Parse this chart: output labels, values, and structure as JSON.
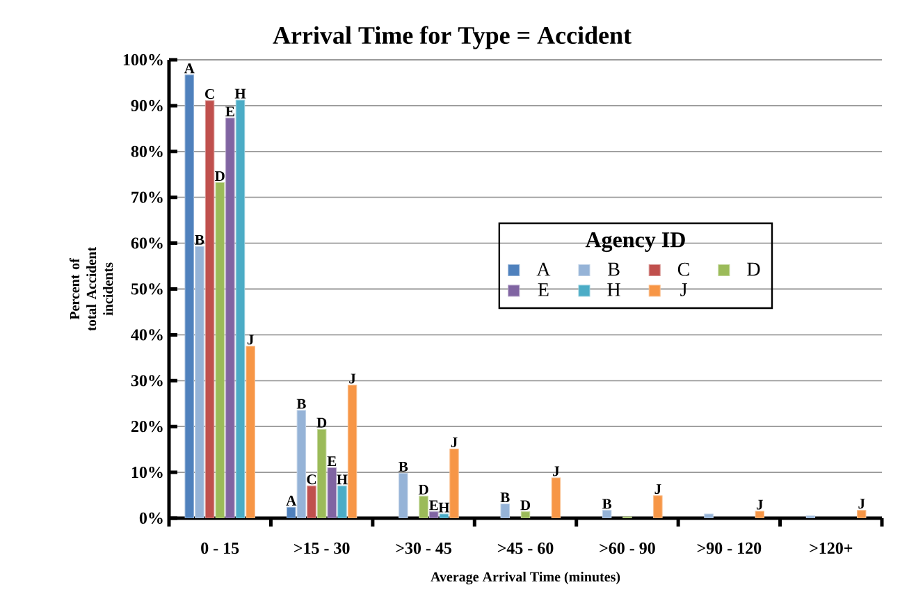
{
  "chart_data": {
    "type": "bar",
    "title": "Arrival Time for Type = Accident",
    "xlabel": "Average Arrival Time (minutes)",
    "ylabel": "Percent of total Accident incidents",
    "legend_title": "Agency ID",
    "categories": [
      "0 - 15",
      ">15 - 30",
      ">30 - 45",
      ">45 - 60",
      ">60 - 90",
      ">90 - 120",
      ">120+"
    ],
    "series": [
      {
        "name": "A",
        "color": "#4f81bd",
        "values": [
          96.7,
          2.4,
          null,
          null,
          null,
          null,
          null
        ],
        "value_labels": [
          "A",
          "A",
          null,
          null,
          null,
          null,
          null
        ]
      },
      {
        "name": "B",
        "color": "#95b3d7",
        "values": [
          59.3,
          23.5,
          9.8,
          3.1,
          1.7,
          0.9,
          0.5
        ],
        "value_labels": [
          "B",
          "B",
          "B",
          "B",
          "B",
          null,
          null
        ]
      },
      {
        "name": "C",
        "color": "#c0504d",
        "values": [
          91.1,
          7.0,
          null,
          null,
          null,
          null,
          null
        ],
        "value_labels": [
          "C",
          "C",
          null,
          null,
          null,
          null,
          null
        ]
      },
      {
        "name": "D",
        "color": "#9bbb59",
        "values": [
          73.2,
          19.4,
          4.8,
          1.4,
          0.3,
          null,
          null
        ],
        "value_labels": [
          "D",
          "D",
          "D",
          "D",
          null,
          null,
          null
        ]
      },
      {
        "name": "E",
        "color": "#8064a2",
        "values": [
          87.3,
          11.0,
          1.4,
          null,
          null,
          null,
          null
        ],
        "value_labels": [
          "E",
          "E",
          "E",
          null,
          null,
          null,
          null
        ]
      },
      {
        "name": "H",
        "color": "#4bacc6",
        "values": [
          91.2,
          7.0,
          0.9,
          null,
          null,
          null,
          null
        ],
        "value_labels": [
          "H",
          "H",
          "H",
          null,
          null,
          null,
          null
        ]
      },
      {
        "name": "J",
        "color": "#f79646",
        "values": [
          37.5,
          29.0,
          15.1,
          8.8,
          4.9,
          1.5,
          1.7
        ],
        "value_labels": [
          "J",
          "J",
          "J",
          "J",
          "J",
          "J",
          "J"
        ]
      }
    ],
    "ylim": [
      0,
      100
    ],
    "yticks": [
      {
        "value": 0,
        "label": "0%"
      },
      {
        "value": 10,
        "label": "10%"
      },
      {
        "value": 20,
        "label": "20%"
      },
      {
        "value": 30,
        "label": "30%"
      },
      {
        "value": 40,
        "label": "40%"
      },
      {
        "value": 50,
        "label": "50%"
      },
      {
        "value": 60,
        "label": "60%"
      },
      {
        "value": 70,
        "label": "70%"
      },
      {
        "value": 80,
        "label": "80%"
      },
      {
        "value": 90,
        "label": "90%"
      },
      {
        "value": 100,
        "label": "100%"
      }
    ],
    "grid": "y",
    "legend": "right"
  }
}
